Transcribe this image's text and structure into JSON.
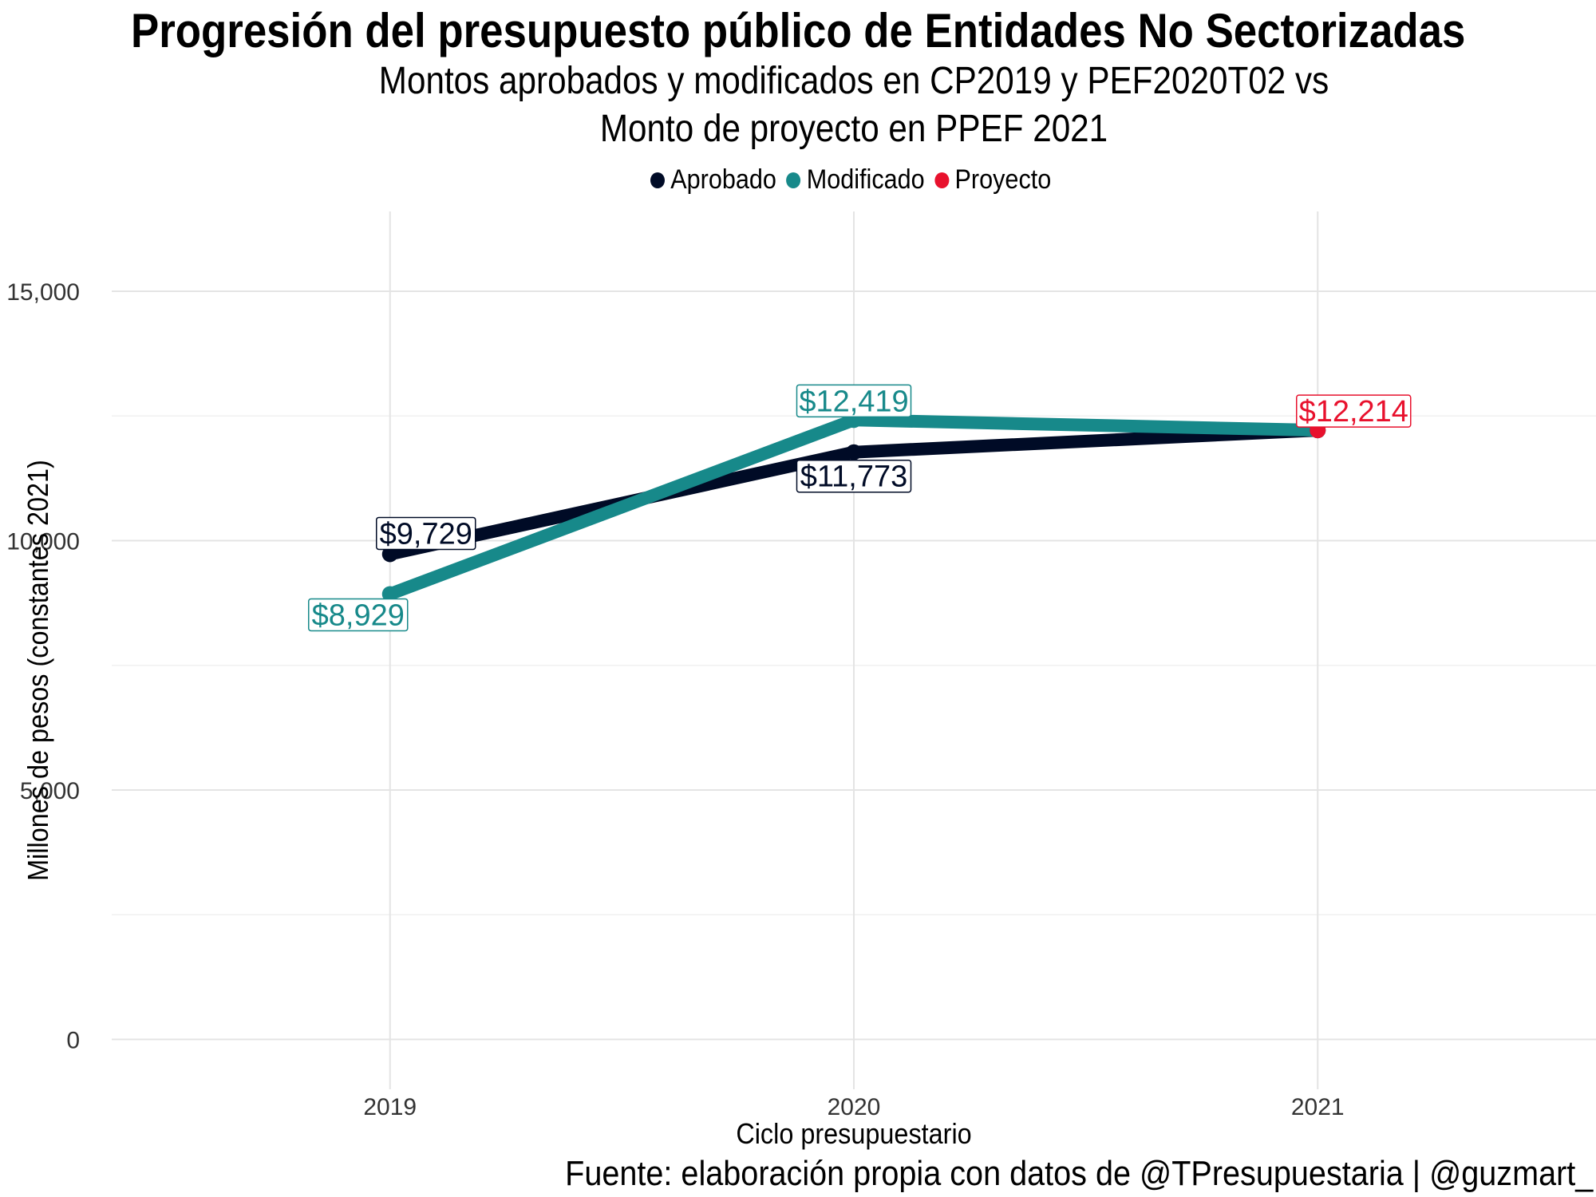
{
  "chart_data": {
    "type": "line",
    "title": "Progresión del presupuesto público de Entidades No Sectorizadas",
    "subtitle": [
      "Montos aprobados y modificados en CP2019 y PEF2020T02 vs",
      "Monto de proyecto en PPEF 2021"
    ],
    "xlabel": "Ciclo presupuestario",
    "ylabel": "Millones de pesos (constantes 2021)",
    "caption": "Fuente: elaboración propia con datos de @TPresupuestaria | @guzmart_",
    "x": [
      "2019",
      "2020",
      "2021"
    ],
    "xlim": [
      2018.4,
      2021.6
    ],
    "ylim": [
      -1000,
      16600
    ],
    "y_ticks": [
      0,
      5000,
      10000,
      15000
    ],
    "y_tick_labels": [
      "0",
      "5,000",
      "10,000",
      "15,000"
    ],
    "grid": true,
    "legend_position": "top",
    "series": [
      {
        "name": "Aprobado",
        "color": "#000b26",
        "points": [
          {
            "x": 2019,
            "y": 9729,
            "label": "$9,729"
          },
          {
            "x": 2020,
            "y": 11773,
            "label": "$11,773"
          },
          {
            "x": 2021,
            "y": 12214
          }
        ]
      },
      {
        "name": "Modificado",
        "color": "#17898a",
        "points": [
          {
            "x": 2019,
            "y": 8929,
            "label": "$8,929"
          },
          {
            "x": 2020,
            "y": 12419,
            "label": "$12,419"
          },
          {
            "x": 2021,
            "y": 12214
          }
        ]
      },
      {
        "name": "Proyecto",
        "color": "#e8112d",
        "points": [
          {
            "x": 2021,
            "y": 12214,
            "label": "$12,214"
          }
        ]
      }
    ]
  }
}
